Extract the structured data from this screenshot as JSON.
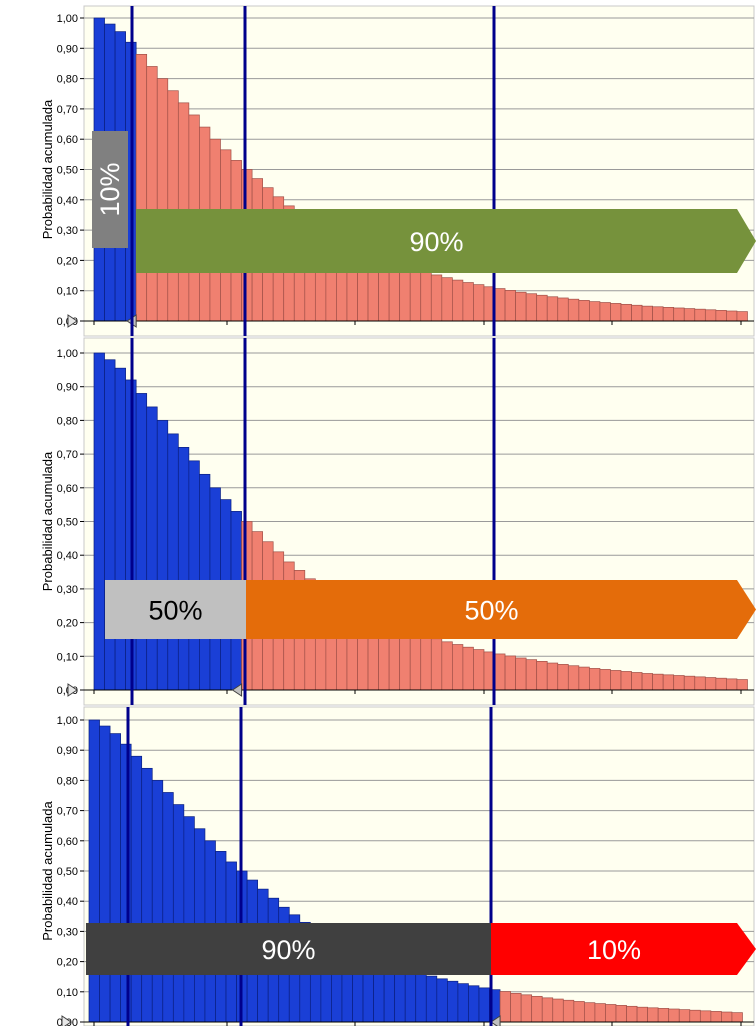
{
  "chart_data": [
    {
      "type": "bar",
      "ylabel": "Probabilidad acumulada",
      "ylim": [
        0,
        1
      ],
      "yticks": [
        "0,00",
        "0,10",
        "0,20",
        "0,30",
        "0,40",
        "0,50",
        "0,60",
        "0,70",
        "0,80",
        "0,90",
        "1,00"
      ],
      "grid": true,
      "values": [
        1.0,
        0.98,
        0.955,
        0.92,
        0.88,
        0.84,
        0.8,
        0.76,
        0.72,
        0.68,
        0.64,
        0.6,
        0.565,
        0.53,
        0.5,
        0.47,
        0.44,
        0.41,
        0.38,
        0.355,
        0.33,
        0.31,
        0.29,
        0.27,
        0.255,
        0.24,
        0.225,
        0.21,
        0.197,
        0.185,
        0.173,
        0.162,
        0.152,
        0.143,
        0.135,
        0.127,
        0.12,
        0.113,
        0.107,
        0.101,
        0.095,
        0.09,
        0.085,
        0.08,
        0.076,
        0.072,
        0.068,
        0.064,
        0.061,
        0.058,
        0.055,
        0.052,
        0.049,
        0.047,
        0.045,
        0.043,
        0.041,
        0.039,
        0.037,
        0.035,
        0.033,
        0.031
      ],
      "blue_bar_count": 4,
      "vertical_line_bars": [
        4,
        14,
        39
      ],
      "colors": {
        "left": "#1a3fd6",
        "right": "#f08070",
        "line": "#00008b",
        "background": "#fffff0"
      },
      "callouts": [
        {
          "label": "10%",
          "color": "#808080",
          "text_color": "#ffffff",
          "orientation": "vertical"
        },
        {
          "label": "90%",
          "color": "#76923c",
          "text_color": "#ffffff",
          "orientation": "arrow"
        }
      ]
    },
    {
      "type": "bar",
      "ylabel": "Probabilidad acumulada",
      "ylim": [
        0,
        1
      ],
      "yticks": [
        "0,00",
        "0,10",
        "0,20",
        "0,30",
        "0,40",
        "0,50",
        "0,60",
        "0,70",
        "0,80",
        "0,90",
        "1,00"
      ],
      "grid": true,
      "values": [
        1.0,
        0.98,
        0.955,
        0.92,
        0.88,
        0.84,
        0.8,
        0.76,
        0.72,
        0.68,
        0.64,
        0.6,
        0.565,
        0.53,
        0.5,
        0.47,
        0.44,
        0.41,
        0.38,
        0.355,
        0.33,
        0.31,
        0.29,
        0.27,
        0.255,
        0.24,
        0.225,
        0.21,
        0.197,
        0.185,
        0.173,
        0.162,
        0.152,
        0.143,
        0.135,
        0.127,
        0.12,
        0.113,
        0.107,
        0.101,
        0.095,
        0.09,
        0.085,
        0.08,
        0.076,
        0.072,
        0.068,
        0.064,
        0.061,
        0.058,
        0.055,
        0.052,
        0.049,
        0.047,
        0.045,
        0.043,
        0.041,
        0.039,
        0.037,
        0.035,
        0.033,
        0.031
      ],
      "blue_bar_count": 14,
      "vertical_line_bars": [
        4,
        14,
        39
      ],
      "colors": {
        "left": "#1a3fd6",
        "right": "#f08070",
        "line": "#00008b",
        "background": "#fffff0"
      },
      "callouts": [
        {
          "label": "50%",
          "color": "#c0c0c0",
          "text_color": "#000000",
          "orientation": "box"
        },
        {
          "label": "50%",
          "color": "#e46c0a",
          "text_color": "#ffffff",
          "orientation": "arrow"
        }
      ]
    },
    {
      "type": "bar",
      "ylabel": "Probabilidad acumulada",
      "ylim": [
        0,
        1
      ],
      "yticks": [
        "0,00",
        "0,10",
        "0,20",
        "0,30",
        "0,40",
        "0,50",
        "0,60",
        "0,70",
        "0,80",
        "0,90",
        "1,00"
      ],
      "grid": true,
      "values": [
        1.0,
        0.98,
        0.955,
        0.92,
        0.88,
        0.84,
        0.8,
        0.76,
        0.72,
        0.68,
        0.64,
        0.6,
        0.565,
        0.53,
        0.5,
        0.47,
        0.44,
        0.41,
        0.38,
        0.355,
        0.33,
        0.31,
        0.29,
        0.27,
        0.255,
        0.24,
        0.225,
        0.21,
        0.197,
        0.185,
        0.173,
        0.162,
        0.152,
        0.143,
        0.135,
        0.127,
        0.12,
        0.113,
        0.107,
        0.101,
        0.095,
        0.09,
        0.085,
        0.08,
        0.076,
        0.072,
        0.068,
        0.064,
        0.061,
        0.058,
        0.055,
        0.052,
        0.049,
        0.047,
        0.045,
        0.043,
        0.041,
        0.039,
        0.037,
        0.035,
        0.033,
        0.031
      ],
      "blue_bar_count": 39,
      "vertical_line_bars": [
        4,
        14,
        39
      ],
      "colors": {
        "left": "#1a3fd6",
        "right": "#f08070",
        "line": "#00008b",
        "background": "#fffff0"
      },
      "callouts": [
        {
          "label": "90%",
          "color": "#404040",
          "text_color": "#ffffff",
          "orientation": "box"
        },
        {
          "label": "10%",
          "color": "#ff0000",
          "text_color": "#ffffff",
          "orientation": "arrow"
        }
      ]
    }
  ]
}
